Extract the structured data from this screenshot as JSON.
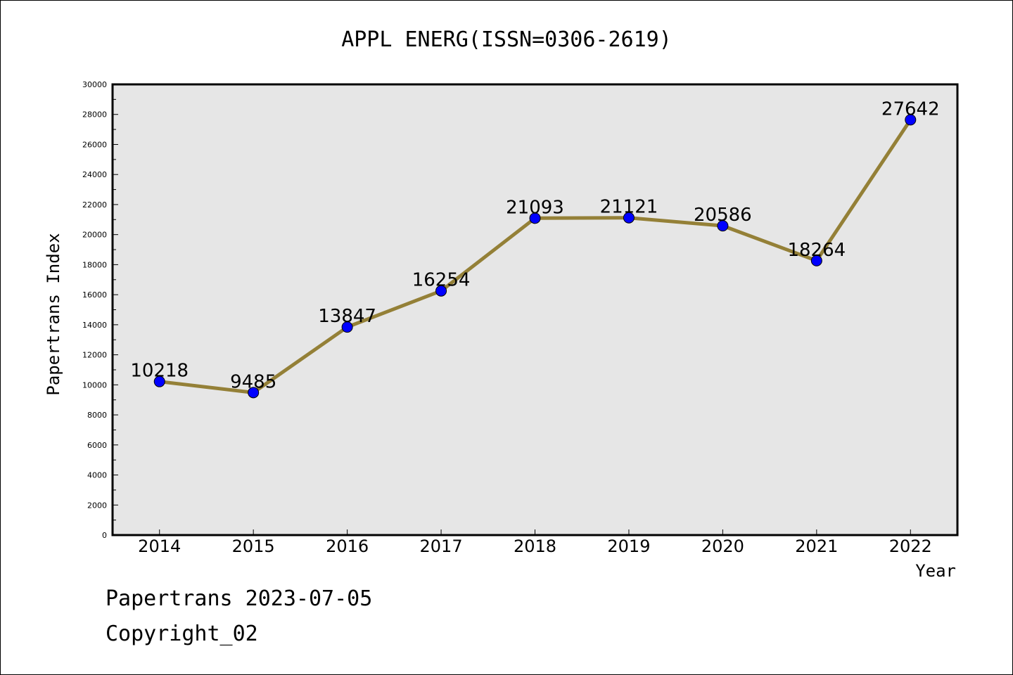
{
  "chart_data": {
    "type": "line",
    "title": "APPL ENERG(ISSN=0306-2619)",
    "xlabel": "Year",
    "ylabel": "Papertrans Index",
    "categories": [
      "2014",
      "2015",
      "2016",
      "2017",
      "2018",
      "2019",
      "2020",
      "2021",
      "2022"
    ],
    "series": [
      {
        "values": [
          10218,
          9485,
          13847,
          16254,
          21093,
          21121,
          20586,
          18264,
          27642
        ]
      }
    ],
    "data_labels": [
      "10218",
      "9485",
      "13847",
      "16254",
      "21093",
      "21121",
      "20586",
      "18264",
      "27642"
    ],
    "ylim": [
      0,
      30000
    ],
    "yticks": [
      "0",
      "2000",
      "4000",
      "6000",
      "8000",
      "10000",
      "12000",
      "14000",
      "16000",
      "18000",
      "20000",
      "22000",
      "24000",
      "26000",
      "28000",
      "30000"
    ],
    "grid": false,
    "colors": {
      "line": "#948037",
      "marker": "#0000ff",
      "plot_background": "#e6e6e6"
    }
  },
  "footer": {
    "date_line": "Papertrans 2023-07-05",
    "copyright": "Copyright_02"
  }
}
